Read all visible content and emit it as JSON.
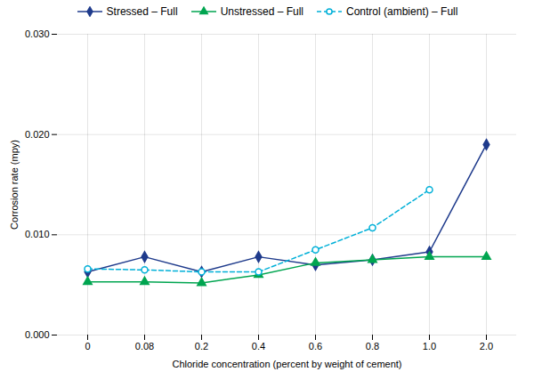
{
  "chart_data": {
    "type": "line",
    "categories": [
      "0",
      "0.08",
      "0.2",
      "0.4",
      "0.6",
      "0.8",
      "1.0",
      "2.0"
    ],
    "series": [
      {
        "name": "Stressed – Full",
        "color": "#1f3b8c",
        "marker": "diamond",
        "line_style": "solid",
        "values": [
          0.0063,
          0.0078,
          0.0063,
          0.0078,
          0.007,
          0.0075,
          0.0083,
          0.019
        ]
      },
      {
        "name": "Unstressed – Full",
        "color": "#00a550",
        "marker": "triangle",
        "line_style": "solid",
        "values": [
          0.0053,
          0.0053,
          0.0052,
          0.006,
          0.0072,
          0.0075,
          0.0078,
          0.0078
        ]
      },
      {
        "name": "Control (ambient) – Full",
        "color": "#00b0d8",
        "marker": "hollow_circle",
        "line_style": "dashed",
        "values": [
          0.0066,
          0.0065,
          0.0063,
          0.0063,
          0.0085,
          0.0107,
          0.0145,
          null
        ]
      }
    ],
    "xlabel": "Chloride concentration (percent by weight of cement)",
    "ylabel": "Corrosion rate (mpy)",
    "ylim": [
      0.0,
      0.03
    ],
    "yticks": [
      {
        "value": 0.0,
        "label": "0.000"
      },
      {
        "value": 0.01,
        "label": "0.010"
      },
      {
        "value": 0.02,
        "label": "0.020"
      },
      {
        "value": 0.03,
        "label": "0.030"
      }
    ],
    "grid": true,
    "legend": "top"
  }
}
